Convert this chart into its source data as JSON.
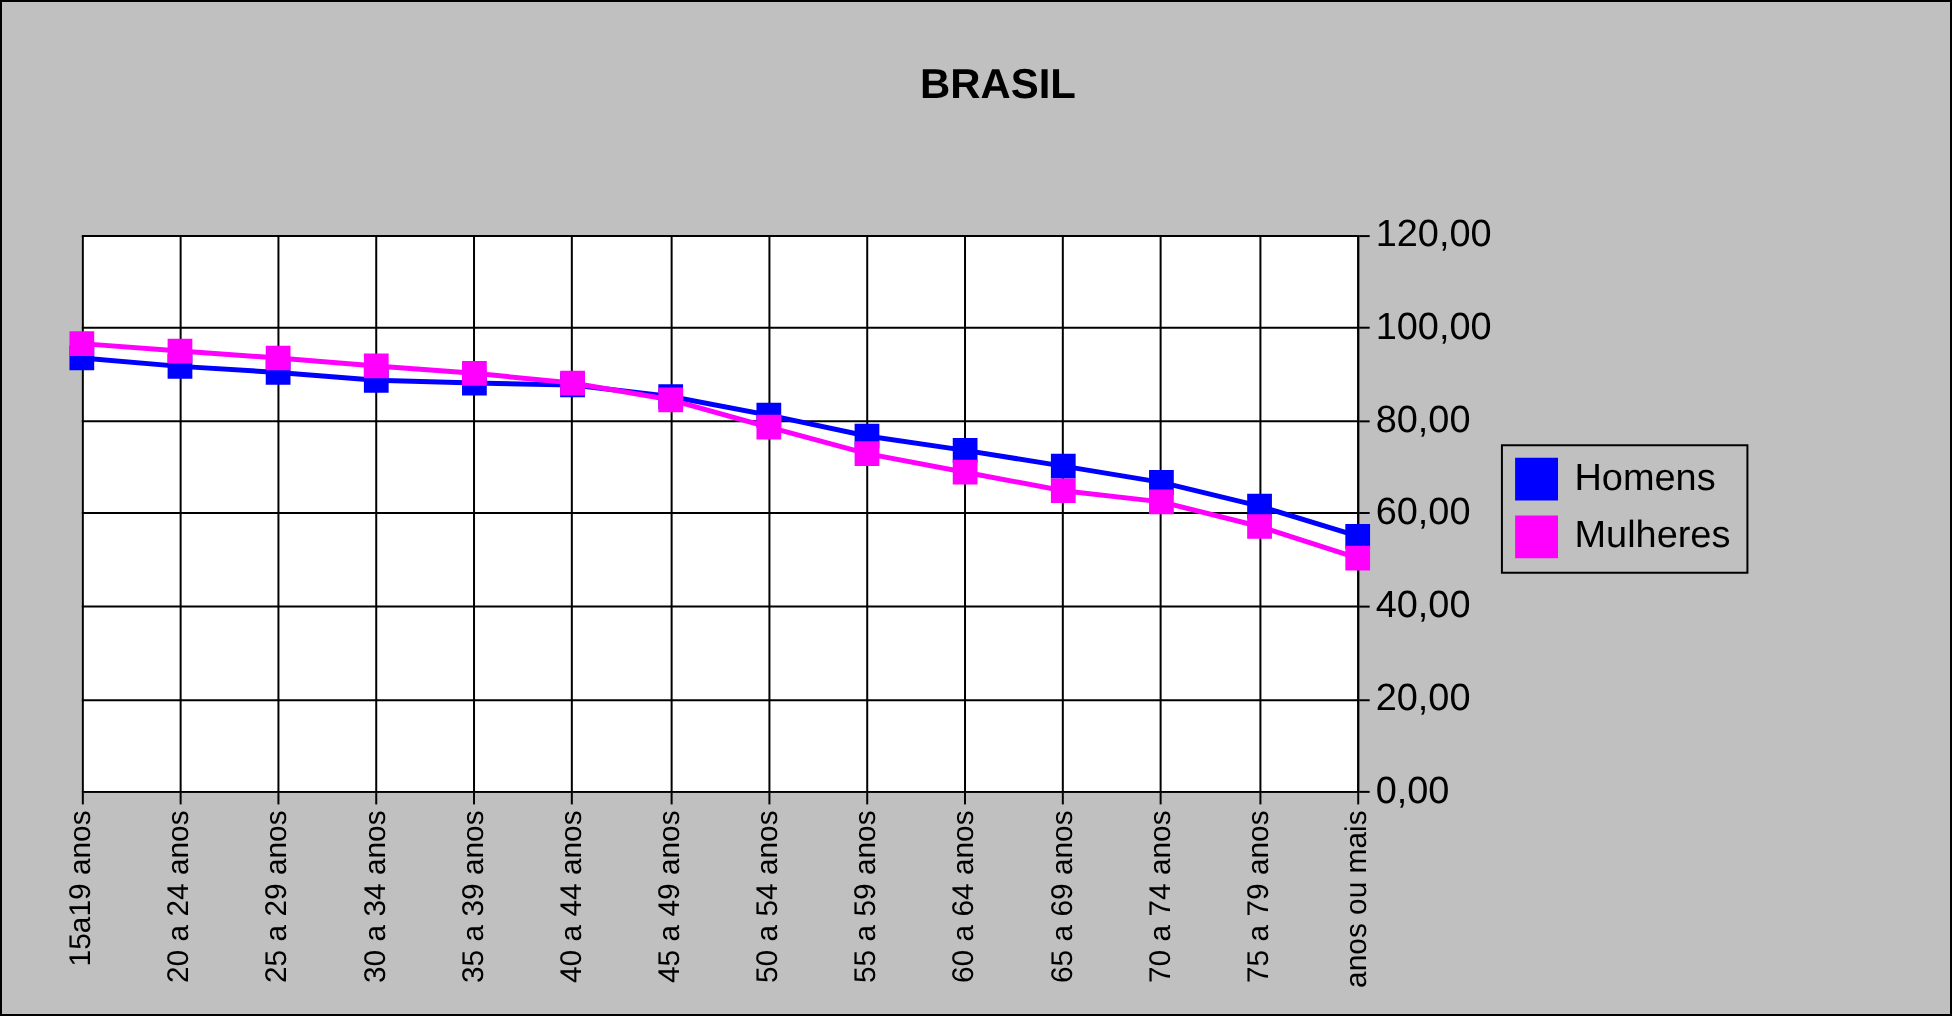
{
  "chart_data": {
    "type": "line",
    "title": "BRASIL",
    "categories": [
      "15a19 anos",
      "20 a 24 anos",
      "25 a 29 anos",
      "30 a 34 anos",
      "35 a 39 anos",
      "40 a 44 anos",
      "45 a 49 anos",
      "50 a 54 anos",
      "55 a 59 anos",
      "60 a 64 anos",
      "65 a 69 anos",
      "70 a 74 anos",
      "75 a 79 anos",
      "anos ou mais"
    ],
    "series": [
      {
        "name": "Homens",
        "color": "#0000ff",
        "values": [
          93.6,
          91.8,
          90.5,
          88.8,
          88.2,
          87.8,
          85.3,
          81.3,
          76.8,
          73.7,
          70.3,
          66.8,
          61.7,
          55.2
        ]
      },
      {
        "name": "Mulheres",
        "color": "#ff00ff",
        "values": [
          96.7,
          95.1,
          93.6,
          91.9,
          90.3,
          88.2,
          84.6,
          78.7,
          73,
          69,
          65,
          62.6,
          57.3,
          50.5
        ]
      }
    ],
    "ylim": [
      0,
      120
    ],
    "yticks": [
      {
        "value": 0,
        "label": "0,00"
      },
      {
        "value": 20,
        "label": "20,00"
      },
      {
        "value": 40,
        "label": "40,00"
      },
      {
        "value": 60,
        "label": "60,00"
      },
      {
        "value": 80,
        "label": "80,00"
      },
      {
        "value": 100,
        "label": "100,00"
      },
      {
        "value": 120,
        "label": "120,00"
      }
    ],
    "grid": true,
    "legend": "right",
    "marker": "square",
    "line_style": "solid"
  }
}
